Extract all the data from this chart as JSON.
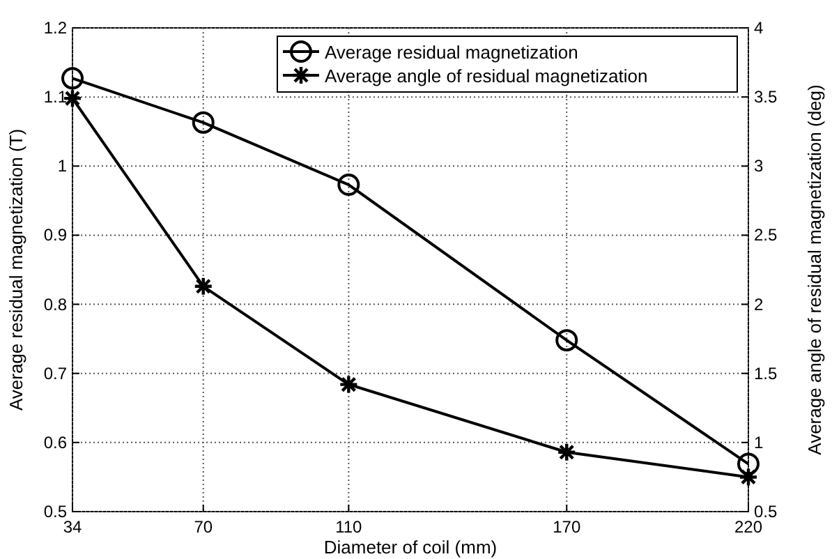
{
  "chart_data": {
    "type": "line",
    "xlabel": "Diameter of coil (mm)",
    "ylabel": "Average residual magnetization (T)",
    "y2label": "Average angle of residual magnetization (deg)",
    "x": [
      34,
      70,
      110,
      170,
      220
    ],
    "xlim": [
      34,
      220
    ],
    "xticks": [
      34,
      70,
      110,
      170,
      220
    ],
    "ylim": [
      0.5,
      1.2
    ],
    "yticks": [
      0.5,
      0.6,
      0.7,
      0.8,
      0.9,
      1,
      1.1,
      1.2
    ],
    "y2lim": [
      0.5,
      4
    ],
    "y2ticks": [
      0.5,
      1,
      1.5,
      2,
      2.5,
      3,
      3.5,
      4
    ],
    "grid": true,
    "legend": "top right",
    "line_style": "solid",
    "series": [
      {
        "name": "Average residual magnetization",
        "color": "#000000",
        "marker": "circle",
        "values": [
          1.127,
          1.063,
          0.973,
          0.748,
          0.569
        ]
      },
      {
        "name": "Average angle of residual magnetization",
        "color": "#000000",
        "marker": "cross",
        "axis": "y2",
        "values": [
          3.49,
          2.13,
          1.42,
          0.93,
          0.75
        ]
      }
    ]
  }
}
